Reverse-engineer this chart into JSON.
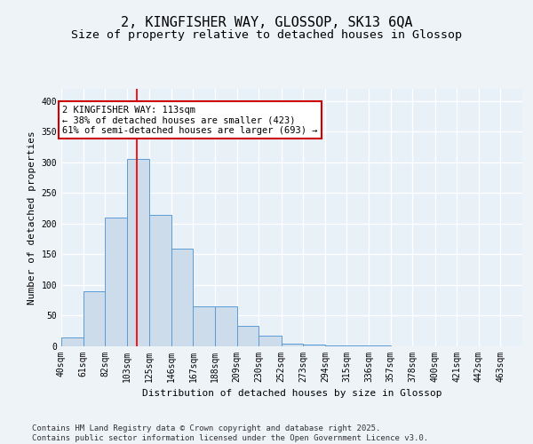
{
  "title_line1": "2, KINGFISHER WAY, GLOSSOP, SK13 6QA",
  "title_line2": "Size of property relative to detached houses in Glossop",
  "xlabel": "Distribution of detached houses by size in Glossop",
  "ylabel": "Number of detached properties",
  "bar_color": "#ccdcea",
  "bar_edge_color": "#5b9bd5",
  "background_color": "#e8f0f8",
  "fig_background_color": "#eef3f8",
  "grid_color": "#ffffff",
  "red_line_x": 113,
  "annotation_text": "2 KINGFISHER WAY: 113sqm\n← 38% of detached houses are smaller (423)\n61% of semi-detached houses are larger (693) →",
  "annotation_box_color": "#ffffff",
  "annotation_border_color": "#cc0000",
  "bin_edges": [
    40,
    61,
    82,
    103,
    125,
    146,
    167,
    188,
    209,
    230,
    252,
    273,
    294,
    315,
    336,
    357,
    378,
    400,
    421,
    442,
    463
  ],
  "bar_heights": [
    15,
    90,
    210,
    305,
    215,
    160,
    65,
    65,
    33,
    18,
    5,
    3,
    2,
    1,
    1,
    0,
    0,
    0,
    0,
    0
  ],
  "ylim": [
    0,
    420
  ],
  "yticks": [
    0,
    50,
    100,
    150,
    200,
    250,
    300,
    350,
    400
  ],
  "footer_text": "Contains HM Land Registry data © Crown copyright and database right 2025.\nContains public sector information licensed under the Open Government Licence v3.0.",
  "title_fontsize": 11,
  "subtitle_fontsize": 9.5,
  "axis_label_fontsize": 8,
  "tick_fontsize": 7,
  "annotation_fontsize": 7.5,
  "footer_fontsize": 6.5
}
